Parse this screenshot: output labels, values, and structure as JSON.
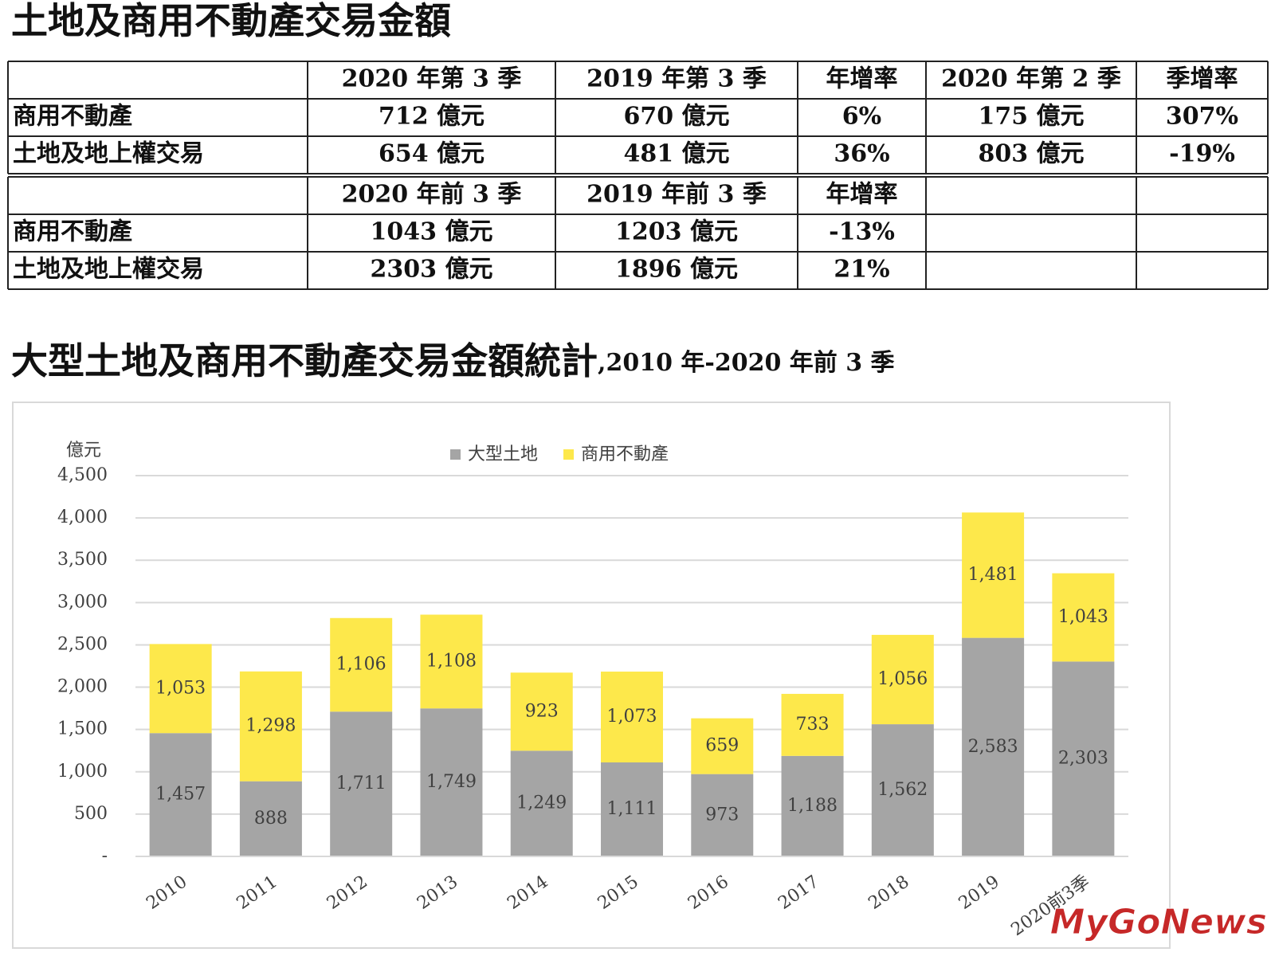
{
  "header": {
    "title": "土地及商用不動產交易金額"
  },
  "table": {
    "blocks": [
      {
        "columns": [
          "2020 年第 3 季",
          "2019 年第 3 季",
          "年增率",
          "2020 年第 2 季",
          "季增率"
        ],
        "rows": [
          {
            "label": "商用不動產",
            "cells": [
              "712 億元",
              "670 億元",
              "6%",
              "175 億元",
              "307%"
            ]
          },
          {
            "label": "土地及地上權交易",
            "cells": [
              "654 億元",
              "481 億元",
              "36%",
              "803 億元",
              "-19%"
            ]
          }
        ]
      },
      {
        "columns": [
          "2020 年前 3 季",
          "2019 年前 3 季",
          "年增率"
        ],
        "rows": [
          {
            "label": "商用不動產",
            "cells": [
              "1043 億元",
              "1203 億元",
              "-13%"
            ]
          },
          {
            "label": "土地及地上權交易",
            "cells": [
              "2303 億元",
              "1896 億元",
              "21%"
            ]
          }
        ]
      }
    ]
  },
  "chart_data": {
    "type": "bar",
    "stacked": true,
    "title": "大型土地及商用不動產交易金額統計",
    "subtitle": ",2010 年-2020 年前 3 季",
    "y_label": "億元",
    "legend": "top",
    "categories": [
      "2010",
      "2011",
      "2012",
      "2013",
      "2014",
      "2015",
      "2016",
      "2017",
      "2018",
      "2019",
      "2020前3季"
    ],
    "series": [
      {
        "name": "大型土地",
        "color": "#a5a5a5",
        "values": [
          1457,
          888,
          1711,
          1749,
          1249,
          1111,
          973,
          1188,
          1562,
          2583,
          2303
        ],
        "value_labels": [
          "1,457",
          "888",
          "1,711",
          "1,749",
          "1,249",
          "1,111",
          "973",
          "1,188",
          "1,562",
          "2,583",
          "2,303"
        ]
      },
      {
        "name": "商用不動產",
        "color": "#fde84b",
        "values": [
          1053,
          1298,
          1106,
          1108,
          923,
          1073,
          659,
          733,
          1056,
          1481,
          1043
        ],
        "value_labels": [
          "1,053",
          "1,298",
          "1,106",
          "1,108",
          "923",
          "1,073",
          "659",
          "733",
          "1,056",
          "1,481",
          "1,043"
        ]
      }
    ],
    "ylim": [
      0,
      4500
    ],
    "yticks": [
      {
        "value": 0,
        "label": "-"
      },
      500,
      {
        "value": 1000,
        "label": "1,000"
      },
      {
        "value": 1500,
        "label": "1,500"
      },
      {
        "value": 2000,
        "label": "2,000"
      },
      {
        "value": 2500,
        "label": "2,500"
      },
      {
        "value": 3000,
        "label": "3,000"
      },
      {
        "value": 3500,
        "label": "3,500"
      },
      {
        "value": 4000,
        "label": "4,000"
      },
      {
        "value": 4500,
        "label": "4,500"
      }
    ],
    "grid": true
  },
  "watermark": "MyGoNews"
}
